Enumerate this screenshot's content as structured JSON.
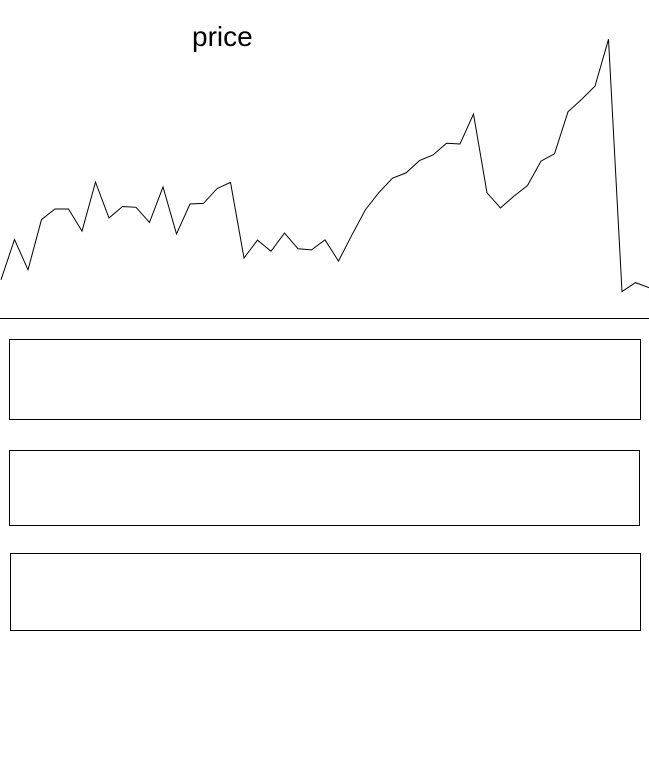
{
  "chart_data": {
    "type": "line",
    "title": "price",
    "xlabel": "",
    "ylabel": "",
    "x": [
      0,
      1,
      2,
      3,
      4,
      5,
      6,
      7,
      8,
      9,
      10,
      11,
      12,
      13,
      14,
      15,
      16,
      17,
      18,
      19,
      20,
      21,
      22,
      23,
      24,
      25,
      26,
      27,
      28,
      29,
      30,
      31,
      32,
      33,
      34,
      35,
      36,
      37,
      38,
      39,
      40,
      41,
      42,
      43,
      44,
      45,
      46,
      47,
      48
    ],
    "series": [
      {
        "color": "#000000",
        "values": [
          7.2,
          21.6,
          10.8,
          28.7,
          32.5,
          32.5,
          24.6,
          42.1,
          29.3,
          33.4,
          33.1,
          27.7,
          40.4,
          23.6,
          34.3,
          34.5,
          39.8,
          42.0,
          15.0,
          21.4,
          17.4,
          23.9,
          18.3,
          17.9,
          21.5,
          13.9,
          23.3,
          32.3,
          38.4,
          43.5,
          45.4,
          49.8,
          51.8,
          56.0,
          55.7,
          66.4,
          38.3,
          32.9,
          37.1,
          40.9,
          49.6,
          52.2,
          67.2,
          71.6,
          76.4,
          93.1,
          3.0,
          6.2,
          4.4
        ]
      }
    ],
    "grid": false,
    "legend": "none"
  }
}
